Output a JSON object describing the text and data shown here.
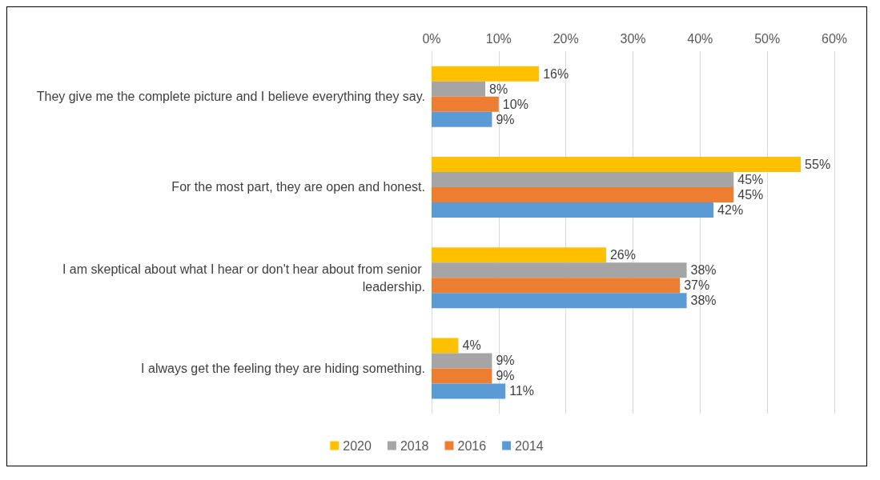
{
  "chart_data": {
    "type": "bar",
    "orientation": "horizontal",
    "categories": [
      "They give me the complete picture and I believe everything they say.",
      "For the most part, they are open and honest.",
      "I am skeptical about what I hear or don't hear about from senior leadership.",
      "I always get the feeling they are hiding something."
    ],
    "series": [
      {
        "name": "2020",
        "color": "#ffc000",
        "values": [
          16,
          55,
          26,
          4
        ],
        "value_labels": [
          "16%",
          "55%",
          "26%",
          "4%"
        ]
      },
      {
        "name": "2018",
        "color": "#a5a5a5",
        "values": [
          8,
          45,
          38,
          9
        ],
        "value_labels": [
          "8%",
          "45%",
          "38%",
          "9%"
        ]
      },
      {
        "name": "2016",
        "color": "#ed7d31",
        "values": [
          10,
          45,
          37,
          9
        ],
        "value_labels": [
          "10%",
          "45%",
          "37%",
          "9%"
        ]
      },
      {
        "name": "2014",
        "color": "#5b9bd5",
        "values": [
          9,
          42,
          38,
          11
        ],
        "value_labels": [
          "9%",
          "42%",
          "38%",
          "11%"
        ]
      }
    ],
    "xlim": [
      0,
      60
    ],
    "xticks": [
      {
        "value": 0,
        "label": "0%"
      },
      {
        "value": 10,
        "label": "10%"
      },
      {
        "value": 20,
        "label": "20%"
      },
      {
        "value": 30,
        "label": "30%"
      },
      {
        "value": 40,
        "label": "40%"
      },
      {
        "value": 50,
        "label": "50%"
      },
      {
        "value": 60,
        "label": "60%"
      }
    ],
    "grid": "x",
    "legend": "bottom"
  }
}
